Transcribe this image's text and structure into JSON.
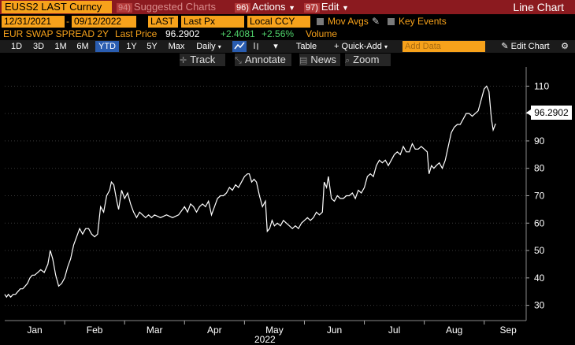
{
  "toolbar": {
    "ticker": "EUSS2 LAST Curncy",
    "suggested_num": "94)",
    "suggested_label": "Suggested Charts",
    "actions_num": "96)",
    "actions_label": "Actions",
    "edit_num": "97)",
    "edit_label": "Edit",
    "chart_type": "Line Chart"
  },
  "params": {
    "start_date": "12/31/2021",
    "date_sep": "-",
    "end_date": "09/12/2022",
    "field": "LAST",
    "field_desc": "Last Px",
    "currency": "Local CCY",
    "mov_avgs": "Mov Avgs",
    "key_events": "Key Events"
  },
  "legend": {
    "security": "EUR SWAP SPREAD 2Y",
    "last_price_label": "Last Price",
    "last_price": "96.2902",
    "change": "+2.4081",
    "change_pct": "+2.56%",
    "volume_label": "Volume"
  },
  "periods": {
    "p1d": "1D",
    "p3d": "3D",
    "p1m": "1M",
    "p6m": "6M",
    "pytd": "YTD",
    "p1y": "1Y",
    "p5y": "5Y",
    "pmax": "Max",
    "freq": "Daily",
    "table": "Table",
    "quick_add": "+ Quick-Add",
    "add_data_placeholder": "Add Data",
    "edit_chart": "Edit Chart"
  },
  "tools": {
    "track": "Track",
    "annotate": "Annotate",
    "news": "News",
    "zoom": "Zoom"
  },
  "colors": {
    "bg": "#000000",
    "line": "#ffffff",
    "accent": "#f7a21b",
    "header": "#8b1a1f",
    "active": "#2a5db0"
  },
  "chart_data": {
    "type": "line",
    "title": "EUR SWAP SPREAD 2Y",
    "xlabel": "2022",
    "ylabel": "",
    "ylim": [
      25,
      117
    ],
    "yticks": [
      30,
      40,
      50,
      60,
      70,
      80,
      90,
      100,
      110
    ],
    "xtick_labels": [
      "Jan",
      "Feb",
      "Mar",
      "Apr",
      "May",
      "Jun",
      "Jul",
      "Aug",
      "Sep"
    ],
    "xtick_months": [
      1.5,
      2.5,
      3.5,
      4.5,
      5.5,
      6.5,
      7.5,
      8.5,
      9.4
    ],
    "x_month_range": [
      1.0,
      9.7
    ],
    "grid": true,
    "last_value_label": "96.2902",
    "series": [
      {
        "values": [
          [
            1.0,
            34
          ],
          [
            1.03,
            33
          ],
          [
            1.06,
            34
          ],
          [
            1.1,
            33
          ],
          [
            1.14,
            34
          ],
          [
            1.18,
            34
          ],
          [
            1.22,
            35
          ],
          [
            1.26,
            36
          ],
          [
            1.3,
            36
          ],
          [
            1.34,
            37
          ],
          [
            1.38,
            38
          ],
          [
            1.42,
            40
          ],
          [
            1.46,
            41
          ],
          [
            1.5,
            41
          ],
          [
            1.55,
            42
          ],
          [
            1.6,
            43
          ],
          [
            1.66,
            42
          ],
          [
            1.72,
            45
          ],
          [
            1.76,
            50
          ],
          [
            1.8,
            47
          ],
          [
            1.85,
            41
          ],
          [
            1.9,
            37
          ],
          [
            1.95,
            38
          ],
          [
            2.0,
            40
          ],
          [
            2.05,
            44
          ],
          [
            2.1,
            47
          ],
          [
            2.15,
            52
          ],
          [
            2.2,
            55
          ],
          [
            2.25,
            58
          ],
          [
            2.3,
            56
          ],
          [
            2.35,
            58
          ],
          [
            2.4,
            58
          ],
          [
            2.45,
            56
          ],
          [
            2.5,
            55
          ],
          [
            2.55,
            56
          ],
          [
            2.6,
            66
          ],
          [
            2.65,
            64
          ],
          [
            2.7,
            70
          ],
          [
            2.75,
            72
          ],
          [
            2.78,
            75
          ],
          [
            2.82,
            74
          ],
          [
            2.87,
            68
          ],
          [
            2.9,
            65
          ],
          [
            2.95,
            72
          ],
          [
            3.0,
            69
          ],
          [
            3.05,
            71
          ],
          [
            3.1,
            67
          ],
          [
            3.15,
            64
          ],
          [
            3.2,
            62
          ],
          [
            3.25,
            64
          ],
          [
            3.3,
            63
          ],
          [
            3.35,
            62
          ],
          [
            3.4,
            63
          ],
          [
            3.45,
            62
          ],
          [
            3.5,
            63
          ],
          [
            3.6,
            62
          ],
          [
            3.7,
            63
          ],
          [
            3.8,
            62
          ],
          [
            3.9,
            63
          ],
          [
            4.0,
            66
          ],
          [
            4.05,
            64
          ],
          [
            4.1,
            67
          ],
          [
            4.15,
            66
          ],
          [
            4.2,
            64
          ],
          [
            4.25,
            66
          ],
          [
            4.3,
            67
          ],
          [
            4.35,
            66
          ],
          [
            4.4,
            68
          ],
          [
            4.45,
            63
          ],
          [
            4.5,
            66
          ],
          [
            4.55,
            69
          ],
          [
            4.6,
            70
          ],
          [
            4.65,
            70
          ],
          [
            4.7,
            71
          ],
          [
            4.75,
            73
          ],
          [
            4.8,
            72
          ],
          [
            4.85,
            74
          ],
          [
            4.9,
            73
          ],
          [
            4.95,
            75
          ],
          [
            5.0,
            77
          ],
          [
            5.05,
            78
          ],
          [
            5.08,
            78
          ],
          [
            5.12,
            75
          ],
          [
            5.16,
            76
          ],
          [
            5.2,
            75
          ],
          [
            5.25,
            70
          ],
          [
            5.3,
            66
          ],
          [
            5.35,
            68
          ],
          [
            5.38,
            57
          ],
          [
            5.42,
            58
          ],
          [
            5.46,
            61
          ],
          [
            5.5,
            59
          ],
          [
            5.55,
            60
          ],
          [
            5.6,
            59
          ],
          [
            5.65,
            61
          ],
          [
            5.7,
            60
          ],
          [
            5.75,
            59
          ],
          [
            5.8,
            58
          ],
          [
            5.85,
            59
          ],
          [
            5.9,
            58
          ],
          [
            5.95,
            60
          ],
          [
            6.0,
            61
          ],
          [
            6.05,
            62
          ],
          [
            6.1,
            61
          ],
          [
            6.15,
            62
          ],
          [
            6.2,
            64
          ],
          [
            6.25,
            63
          ],
          [
            6.3,
            64
          ],
          [
            6.33,
            75
          ],
          [
            6.37,
            73
          ],
          [
            6.4,
            77
          ],
          [
            6.45,
            69
          ],
          [
            6.5,
            68
          ],
          [
            6.55,
            70
          ],
          [
            6.6,
            69
          ],
          [
            6.65,
            69
          ],
          [
            6.7,
            70
          ],
          [
            6.75,
            70
          ],
          [
            6.8,
            71
          ],
          [
            6.85,
            69
          ],
          [
            6.9,
            72
          ],
          [
            6.95,
            71
          ],
          [
            7.0,
            73
          ],
          [
            7.05,
            77
          ],
          [
            7.1,
            78
          ],
          [
            7.15,
            77
          ],
          [
            7.2,
            81
          ],
          [
            7.25,
            83
          ],
          [
            7.3,
            82
          ],
          [
            7.35,
            83
          ],
          [
            7.4,
            81
          ],
          [
            7.45,
            83
          ],
          [
            7.5,
            85
          ],
          [
            7.55,
            86
          ],
          [
            7.6,
            85
          ],
          [
            7.65,
            88
          ],
          [
            7.7,
            86
          ],
          [
            7.75,
            86
          ],
          [
            7.8,
            89
          ],
          [
            7.85,
            87
          ],
          [
            7.9,
            87
          ],
          [
            7.95,
            88
          ],
          [
            8.0,
            87
          ],
          [
            8.05,
            86
          ],
          [
            8.08,
            78
          ],
          [
            8.12,
            81
          ],
          [
            8.16,
            80
          ],
          [
            8.2,
            81
          ],
          [
            8.25,
            82
          ],
          [
            8.3,
            80
          ],
          [
            8.35,
            83
          ],
          [
            8.4,
            88
          ],
          [
            8.45,
            93
          ],
          [
            8.5,
            95
          ],
          [
            8.55,
            96
          ],
          [
            8.6,
            96
          ],
          [
            8.65,
            98
          ],
          [
            8.7,
            100
          ],
          [
            8.75,
            100
          ],
          [
            8.8,
            99
          ],
          [
            8.85,
            100
          ],
          [
            8.9,
            101
          ],
          [
            8.95,
            105
          ],
          [
            9.0,
            109
          ],
          [
            9.04,
            110
          ],
          [
            9.08,
            108
          ],
          [
            9.12,
            98
          ],
          [
            9.15,
            94
          ],
          [
            9.19,
            96.29
          ]
        ]
      }
    ]
  }
}
